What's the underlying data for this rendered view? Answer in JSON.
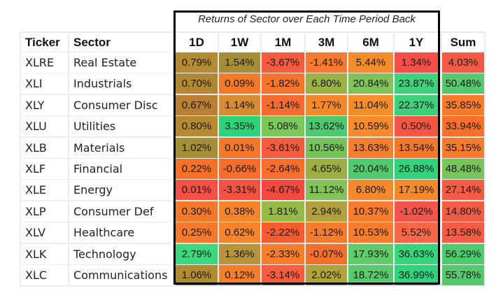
{
  "chart_data": {
    "type": "table",
    "title": "Returns of Sector over Each Time Period Back",
    "columns": [
      "Ticker",
      "Sector",
      "1D",
      "1W",
      "1M",
      "3M",
      "6M",
      "1Y",
      "Sum"
    ],
    "periods": [
      "1D",
      "1W",
      "1M",
      "3M",
      "6M",
      "1Y"
    ],
    "rows": [
      {
        "ticker": "XLRE",
        "sector": "Real Estate",
        "values": [
          "0.79%",
          "1.54%",
          "-3.67%",
          "-1.41%",
          "5.44%",
          "1.34%"
        ],
        "sum": "4.03%"
      },
      {
        "ticker": "XLI",
        "sector": "Industrials",
        "values": [
          "0.70%",
          "0.09%",
          "-1.82%",
          "6.80%",
          "20.84%",
          "23.87%"
        ],
        "sum": "50.48%"
      },
      {
        "ticker": "XLY",
        "sector": "Consumer Disc",
        "values": [
          "0.67%",
          "1.14%",
          "-1.14%",
          "1.77%",
          "11.04%",
          "22.37%"
        ],
        "sum": "35.85%"
      },
      {
        "ticker": "XLU",
        "sector": "Utilities",
        "values": [
          "0.80%",
          "3.35%",
          "5.08%",
          "13.62%",
          "10.59%",
          "0.50%"
        ],
        "sum": "33.94%"
      },
      {
        "ticker": "XLB",
        "sector": "Materials",
        "values": [
          "1.02%",
          "0.01%",
          "-3.61%",
          "10.56%",
          "13.63%",
          "13.54%"
        ],
        "sum": "35.15%"
      },
      {
        "ticker": "XLF",
        "sector": "Financial",
        "values": [
          "0.22%",
          "-0.66%",
          "-2.64%",
          "4.65%",
          "20.04%",
          "26.88%"
        ],
        "sum": "48.48%"
      },
      {
        "ticker": "XLE",
        "sector": "Energy",
        "values": [
          "0.01%",
          "-3.31%",
          "-4.67%",
          "11.12%",
          "6.80%",
          "17.19%"
        ],
        "sum": "27.14%"
      },
      {
        "ticker": "XLP",
        "sector": "Consumer Def",
        "values": [
          "0.30%",
          "0.38%",
          "1.81%",
          "2.94%",
          "10.37%",
          "-1.02%"
        ],
        "sum": "14.80%"
      },
      {
        "ticker": "XLV",
        "sector": "Healthcare",
        "values": [
          "0.25%",
          "0.62%",
          "-2.22%",
          "-1.12%",
          "10.53%",
          "5.52%"
        ],
        "sum": "13.58%"
      },
      {
        "ticker": "XLK",
        "sector": "Technology",
        "values": [
          "2.79%",
          "1.36%",
          "-2.33%",
          "-0.07%",
          "17.93%",
          "36.63%"
        ],
        "sum": "56.29%"
      },
      {
        "ticker": "XLC",
        "sector": "Communications",
        "values": [
          "1.06%",
          "0.12%",
          "-3.14%",
          "2.02%",
          "18.72%",
          "36.99%"
        ],
        "sum": "55.78%"
      }
    ],
    "cell_colors": [
      [
        "#b48a33",
        "#a68e35",
        "#f45b3f",
        "#f97a2c",
        "#f58c2b",
        "#f54f48"
      ],
      [
        "#b28734",
        "#f47a28",
        "#f4752b",
        "#9bb244",
        "#7ec258",
        "#3fd27a"
      ],
      [
        "#bb7f33",
        "#d88b30",
        "#f86a2f",
        "#f4892b",
        "#f78c2b",
        "#40cf7a"
      ],
      [
        "#b48a33",
        "#2ed27a",
        "#7cc85a",
        "#4dc970",
        "#f78a2c",
        "#f55643"
      ],
      [
        "#a58f36",
        "#f5782a",
        "#f45c3d",
        "#77c259",
        "#f47f2e",
        "#f5782a"
      ],
      [
        "#f47127",
        "#f76d2c",
        "#f76d2c",
        "#9fae42",
        "#4fcb6d",
        "#31d37c"
      ],
      [
        "#f55045",
        "#f55243",
        "#f54840",
        "#82c258",
        "#f58a2c",
        "#f58a2c"
      ],
      [
        "#f5792a",
        "#f5842a",
        "#96ba48",
        "#b0a13c",
        "#f77c2c",
        "#f4544a"
      ],
      [
        "#f5792a",
        "#f5842a",
        "#f75c2e",
        "#f47c2c",
        "#f77c2c",
        "#f56747"
      ],
      [
        "#3ed87c",
        "#b8953a",
        "#f77c2c",
        "#f56f2c",
        "#60cc68",
        "#35d47d"
      ],
      [
        "#b08b32",
        "#f47e2a",
        "#f75d3c",
        "#b1a33a",
        "#58ca6c",
        "#30d47e"
      ]
    ],
    "sum_colors": [
      "#f55a45",
      "#56c96e",
      "#f67c2c",
      "#f8702c",
      "#f77b2c",
      "#78c45b",
      "#f55c43",
      "#f55c45",
      "#f55c45",
      "#4ecb6d",
      "#54ca6d"
    ]
  }
}
